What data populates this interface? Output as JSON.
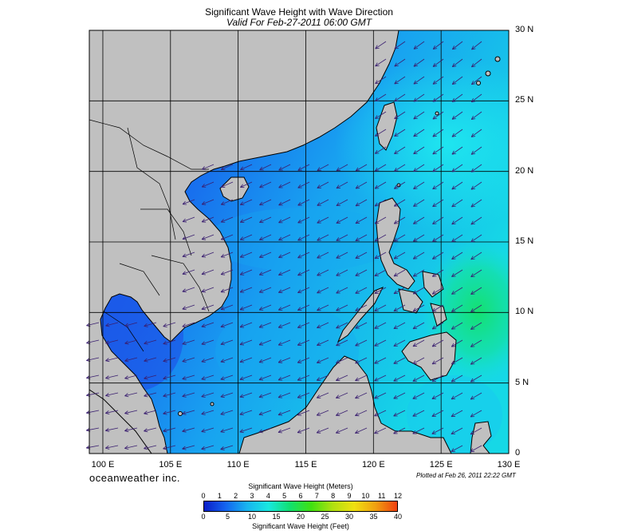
{
  "title": "Significant Wave Height with Wave Direction",
  "subtitle": "Valid For Feb-27-2011 06:00 GMT",
  "map": {
    "lon_range": [
      99,
      130
    ],
    "lat_range": [
      0,
      30
    ],
    "lat_labels": [
      "30 N",
      "25 N",
      "20 N",
      "15 N",
      "10 N",
      "5 N",
      "0"
    ],
    "lat_values": [
      30,
      25,
      20,
      15,
      10,
      5,
      0
    ],
    "lon_labels": [
      "100 E",
      "105 E",
      "110 E",
      "115 E",
      "120 E",
      "125 E",
      "130 E"
    ],
    "lon_values": [
      100,
      105,
      110,
      115,
      120,
      125,
      130
    ],
    "grid": true,
    "arrow_direction": "southwest",
    "colors": {
      "land": "#c0c0c0",
      "border": "#000000",
      "sea_low": "#1e5cf0",
      "sea_mid": "#16a6ee",
      "sea_high": "#17e8d0",
      "sea_peak": "#14d870",
      "arrows": "#3a1f70"
    }
  },
  "brand": "oceanweather inc.",
  "plotted": "Plotted at Feb 26, 2011 22:22 GMT",
  "colorbar": {
    "meters_title": "Significant Wave Height (Meters)",
    "feet_title": "Significant Wave Height (Feet)",
    "meters_ticks": [
      "0",
      "1",
      "2",
      "3",
      "4",
      "5",
      "6",
      "7",
      "8",
      "9",
      "10",
      "11",
      "12"
    ],
    "feet_ticks": [
      "0",
      "5",
      "10",
      "15",
      "20",
      "25",
      "30",
      "35",
      "40"
    ],
    "colors": [
      "#0a1ec8",
      "#1464f0",
      "#18b4f0",
      "#18e8e0",
      "#10e070",
      "#40e010",
      "#b0e010",
      "#f0e010",
      "#f0a010",
      "#f04010"
    ]
  }
}
